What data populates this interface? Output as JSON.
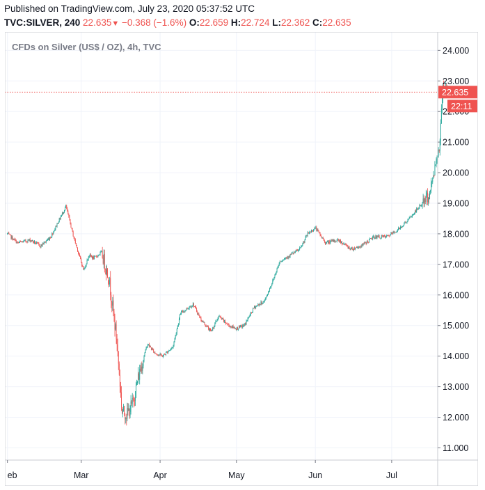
{
  "header": {
    "published": "Published on TradingView.com, July 23, 2020 05:37:52 UTC",
    "symbol": "TVC:SILVER, 240",
    "last": "22.635",
    "arrow": "▼",
    "change": "−0.368 (−1.6%)",
    "o_label": "O:",
    "o_value": "22.659",
    "h_label": "H:",
    "h_value": "22.724",
    "l_label": "L:",
    "l_value": "22.362",
    "c_label": "C:",
    "c_value": "22.635"
  },
  "chart_data": {
    "type": "candlestick",
    "title": "CFDs on Silver (US$ / OZ), 4h, TVC",
    "ylim": [
      10.6,
      24.6
    ],
    "y_ticks": [
      "11.000",
      "12.000",
      "13.000",
      "14.000",
      "15.000",
      "16.000",
      "17.000",
      "18.000",
      "19.000",
      "20.000",
      "21.000",
      "22.000",
      "23.000",
      "24.000"
    ],
    "x_range": [
      "2020-01-31",
      "2020-07-24"
    ],
    "x_ticks": [
      {
        "label": "eb",
        "date": "2020-02-01"
      },
      {
        "label": "Mar",
        "date": "2020-03-01"
      },
      {
        "label": "Apr",
        "date": "2020-04-01"
      },
      {
        "label": "May",
        "date": "2020-05-01"
      },
      {
        "label": "Jun",
        "date": "2020-06-01"
      },
      {
        "label": "Jul",
        "date": "2020-07-01"
      }
    ],
    "price_trajectory": [
      [
        "2020-02-01",
        18.0
      ],
      [
        "2020-02-05",
        17.7
      ],
      [
        "2020-02-10",
        17.8
      ],
      [
        "2020-02-14",
        17.6
      ],
      [
        "2020-02-18",
        17.9
      ],
      [
        "2020-02-21",
        18.4
      ],
      [
        "2020-02-24",
        18.9
      ],
      [
        "2020-02-27",
        17.9
      ],
      [
        "2020-03-02",
        16.8
      ],
      [
        "2020-03-04",
        17.3
      ],
      [
        "2020-03-06",
        17.2
      ],
      [
        "2020-03-09",
        17.4
      ],
      [
        "2020-03-12",
        16.5
      ],
      [
        "2020-03-15",
        14.5
      ],
      [
        "2020-03-17",
        12.2
      ],
      [
        "2020-03-19",
        12.1
      ],
      [
        "2020-03-21",
        12.4
      ],
      [
        "2020-03-24",
        13.5
      ],
      [
        "2020-03-27",
        14.4
      ],
      [
        "2020-03-30",
        14.1
      ],
      [
        "2020-04-02",
        14.0
      ],
      [
        "2020-04-06",
        14.3
      ],
      [
        "2020-04-09",
        15.4
      ],
      [
        "2020-04-14",
        15.7
      ],
      [
        "2020-04-17",
        15.2
      ],
      [
        "2020-04-21",
        14.8
      ],
      [
        "2020-04-24",
        15.3
      ],
      [
        "2020-04-28",
        15.0
      ],
      [
        "2020-05-01",
        14.9
      ],
      [
        "2020-05-04",
        15.0
      ],
      [
        "2020-05-08",
        15.6
      ],
      [
        "2020-05-12",
        15.8
      ],
      [
        "2020-05-15",
        16.4
      ],
      [
        "2020-05-18",
        17.1
      ],
      [
        "2020-05-22",
        17.3
      ],
      [
        "2020-05-26",
        17.5
      ],
      [
        "2020-05-29",
        18.0
      ],
      [
        "2020-06-01",
        18.2
      ],
      [
        "2020-06-05",
        17.7
      ],
      [
        "2020-06-10",
        17.8
      ],
      [
        "2020-06-15",
        17.5
      ],
      [
        "2020-06-19",
        17.6
      ],
      [
        "2020-06-24",
        17.9
      ],
      [
        "2020-06-29",
        17.9
      ],
      [
        "2020-07-03",
        18.1
      ],
      [
        "2020-07-08",
        18.5
      ],
      [
        "2020-07-13",
        19.0
      ],
      [
        "2020-07-16",
        19.3
      ],
      [
        "2020-07-17",
        19.8
      ],
      [
        "2020-07-20",
        21.0
      ],
      [
        "2020-07-21",
        22.9
      ],
      [
        "2020-07-22",
        22.8
      ],
      [
        "2020-07-23",
        22.635
      ]
    ],
    "last_price": "22.635",
    "countdown": "22:11",
    "colors": {
      "up": "#26a69a",
      "down": "#ef5350",
      "price_line": "#ef5350",
      "grid": "#f0f3fa",
      "axis": "#787b86"
    }
  }
}
